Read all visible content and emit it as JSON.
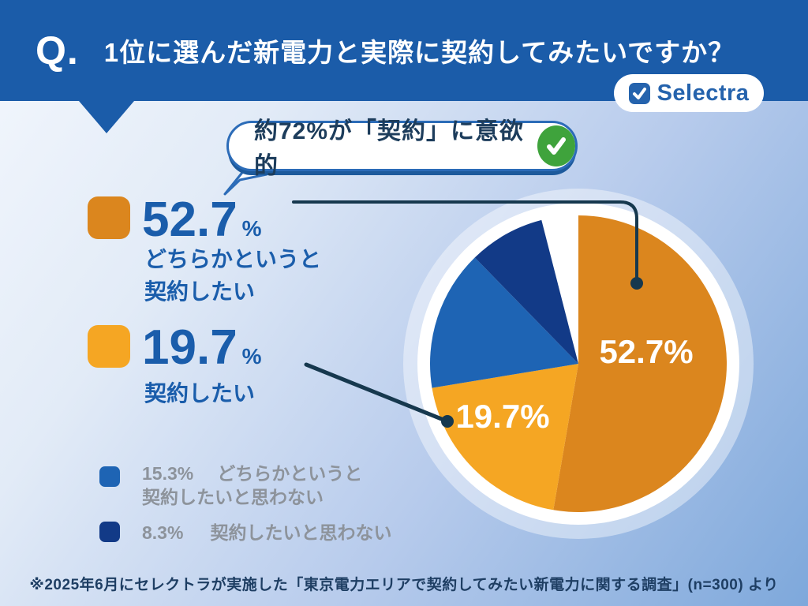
{
  "header": {
    "q_prefix": "Q.",
    "title": "1位に選んだ新電力と実際に契約してみたいですか？"
  },
  "brand": {
    "name": "Selectra"
  },
  "callout": {
    "text": "約72%が「契約」に意欲的"
  },
  "legend_primary": [
    {
      "value": "52.7",
      "unit": "%",
      "label_lines": [
        "どちらかというと",
        "契約したい"
      ],
      "color": "#DB861E"
    },
    {
      "value": "19.7",
      "unit": "%",
      "label_lines": [
        "契約したい"
      ],
      "color": "#F5A623"
    }
  ],
  "legend_secondary": [
    {
      "value": "15.3%",
      "label_lines": [
        "どちらかというと",
        "契約したいと思わない"
      ],
      "color": "#1E64B4"
    },
    {
      "value": "8.3%",
      "label_lines": [
        "契約したいと思わない"
      ],
      "color": "#123A87"
    }
  ],
  "footnote": "※2025年6月にセレクトラが実施した「東京電力エリアで契約してみたい新電力に関する調査」(n=300) より",
  "colors": {
    "header_blue": "#1B5CA9",
    "accent_text_blue": "#1A5DAB",
    "orange": "#DB861E",
    "amber": "#F5A623",
    "mid_blue": "#1E64B4",
    "navy": "#123A87",
    "connector": "#16384E",
    "green_check": "#3FA33C",
    "gray_text": "#8D939B",
    "footnote_text": "#1E3E63"
  },
  "chart_data": {
    "type": "pie",
    "title": "1位に選んだ新電力と実際に契約してみたいですか？",
    "slices": [
      {
        "label": "どちらかというと契約したい",
        "value": 52.7,
        "color": "#DB861E"
      },
      {
        "label": "契約したい",
        "value": 19.7,
        "color": "#F5A623"
      },
      {
        "label": "どちらかというと契約したいと思わない",
        "value": 15.3,
        "color": "#1E64B4"
      },
      {
        "label": "契約したいと思わない",
        "value": 8.3,
        "color": "#123A87"
      }
    ],
    "start_angle_deg": 0,
    "direction": "clockwise",
    "on_pie_labels": [
      {
        "text": "52.7%"
      },
      {
        "text": "19.7%"
      }
    ],
    "callout_summary": "約72%が「契約」に意欲的",
    "sample_size": "n=300",
    "legend_position": "left"
  }
}
